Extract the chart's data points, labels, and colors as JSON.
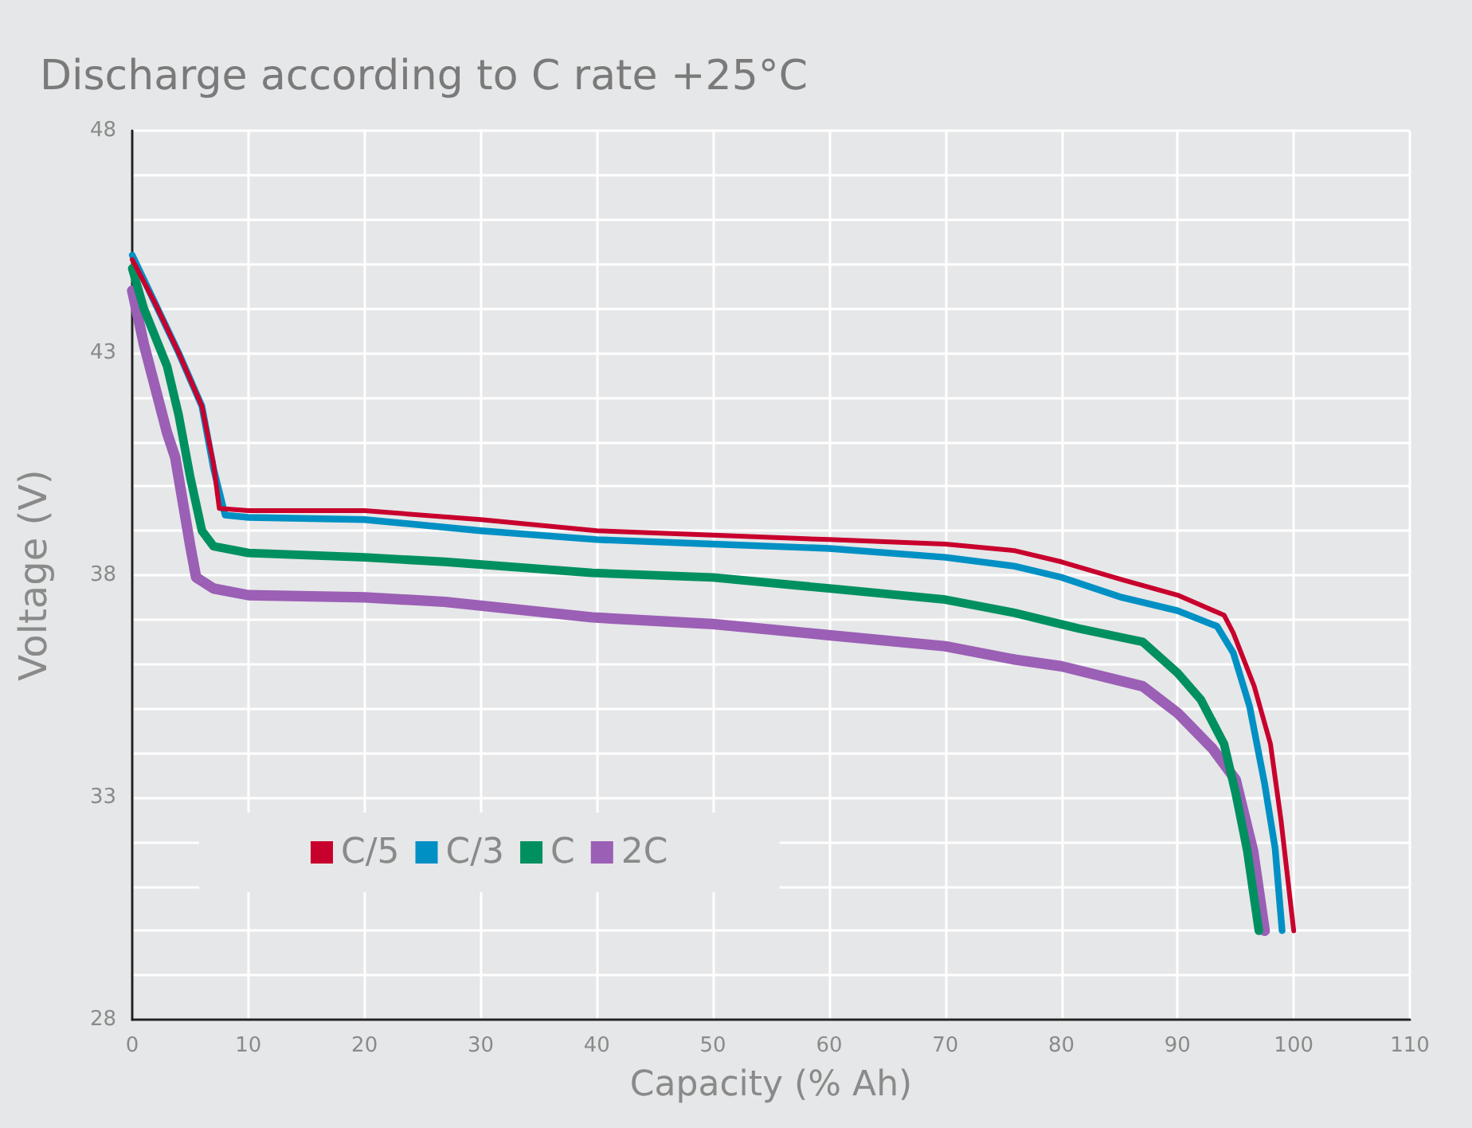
{
  "chart_data": {
    "type": "line",
    "title": "Discharge according to C rate +25°C",
    "xlabel": "Capacity (% Ah)",
    "ylabel": "Voltage (V)",
    "xlim": [
      0,
      110
    ],
    "xticks": [
      0,
      10,
      20,
      30,
      40,
      50,
      60,
      70,
      80,
      90,
      100,
      110
    ],
    "ylim": [
      28,
      48
    ],
    "yticks": [
      28,
      {
        "value": 29,
        "label": null
      },
      {
        "value": 30,
        "label": null
      },
      {
        "value": 31,
        "label": null
      },
      {
        "value": 32,
        "label": null
      },
      33,
      {
        "value": 34,
        "label": null
      },
      {
        "value": 35,
        "label": null
      },
      {
        "value": 36,
        "label": null
      },
      {
        "value": 37,
        "label": null
      },
      38,
      {
        "value": 39,
        "label": null
      },
      {
        "value": 40,
        "label": null
      },
      {
        "value": 41,
        "label": null
      },
      {
        "value": 42,
        "label": null
      },
      43,
      {
        "value": 44,
        "label": null
      },
      {
        "value": 45,
        "label": null
      },
      {
        "value": 46,
        "label": null
      },
      {
        "value": 47,
        "label": null
      },
      48
    ],
    "grid": true,
    "legend": "bottom left",
    "marker": "none",
    "line_style": "solid",
    "series": [
      {
        "name": "C/5",
        "color": "#c8002d",
        "x": [
          0,
          2,
          4,
          6,
          7,
          7.5,
          10,
          20,
          30,
          40,
          50,
          60,
          70,
          76,
          80,
          85.2,
          90,
          94,
          94.8,
          96.6,
          98,
          98.9,
          100
        ],
        "values": [
          45.1,
          44.1,
          43.0,
          41.8,
          40.5,
          39.5,
          39.45,
          39.45,
          39.25,
          39.0,
          38.9,
          38.8,
          38.7,
          38.55,
          38.3,
          37.9,
          37.55,
          37.1,
          36.7,
          35.5,
          34.2,
          32.5,
          30
        ]
      },
      {
        "name": "C/3",
        "color": "#0090c4",
        "x": [
          0,
          2,
          4,
          6,
          7,
          8,
          10,
          20,
          30,
          40,
          50,
          60,
          70,
          76,
          80,
          85.2,
          90,
          93.4,
          94.8,
          96.2,
          97.5,
          98.4,
          99
        ],
        "values": [
          45.2,
          44.1,
          43.0,
          41.8,
          40.4,
          39.35,
          39.3,
          39.25,
          39.0,
          38.8,
          38.7,
          38.6,
          38.4,
          38.2,
          37.95,
          37.5,
          37.2,
          36.85,
          36.25,
          35.05,
          33.3,
          31.85,
          30
        ]
      },
      {
        "name": "C",
        "color": "#009060",
        "x": [
          0,
          1,
          3,
          4,
          5,
          6,
          7,
          10,
          20,
          26.9,
          39.6,
          50,
          60,
          70,
          76,
          81.5,
          87,
          90,
          92,
          94,
          95,
          96,
          97
        ],
        "values": [
          44.9,
          44.0,
          42.7,
          41.6,
          40.2,
          39.0,
          38.65,
          38.5,
          38.4,
          38.3,
          38.05,
          37.95,
          37.7,
          37.45,
          37.15,
          36.8,
          36.5,
          35.8,
          35.2,
          34.2,
          33.1,
          31.8,
          30
        ]
      },
      {
        "name": "2C",
        "color": "#9b5fb5",
        "x": [
          0,
          1,
          3,
          3.7,
          5,
          5.5,
          7,
          10,
          20,
          26.9,
          39.6,
          50,
          60,
          70,
          76,
          80,
          87,
          90,
          93,
          95,
          96.5,
          97.5
        ],
        "values": [
          44.4,
          43.2,
          41.2,
          40.65,
          38.65,
          37.95,
          37.7,
          37.55,
          37.5,
          37.4,
          37.05,
          36.9,
          36.65,
          36.4,
          36.1,
          35.95,
          35.5,
          34.9,
          34.1,
          33.4,
          31.8,
          30
        ]
      }
    ]
  }
}
